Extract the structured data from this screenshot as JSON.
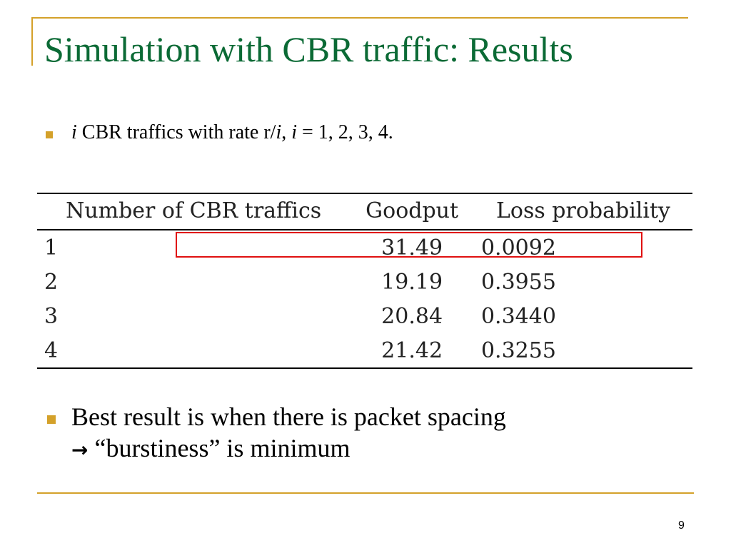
{
  "title": "Simulation with CBR traffic: Results",
  "bullet1": {
    "i1": "i",
    "t1": " CBR traffics with rate r/",
    "i2": "i",
    "t2": ", ",
    "i3": "i",
    "t3": " = 1, 2, 3, 4."
  },
  "table": {
    "headers": [
      "Number of CBR traffics",
      "Goodput",
      "Loss probability"
    ],
    "rows": [
      [
        "1",
        "31.49",
        "0.0092"
      ],
      [
        "2",
        "19.19",
        "0.3955"
      ],
      [
        "3",
        "20.84",
        "0.3440"
      ],
      [
        "4",
        "21.42",
        "0.3255"
      ]
    ],
    "highlighted_row": "1"
  },
  "bullet2": {
    "line1": "Best result is when there is packet spacing",
    "arrow": "→",
    "line2": " “burstiness” is minimum"
  },
  "page_number": "9",
  "colors": {
    "title": "#0b6a35",
    "accent": "#d4a12a",
    "highlight": "#e01010"
  }
}
